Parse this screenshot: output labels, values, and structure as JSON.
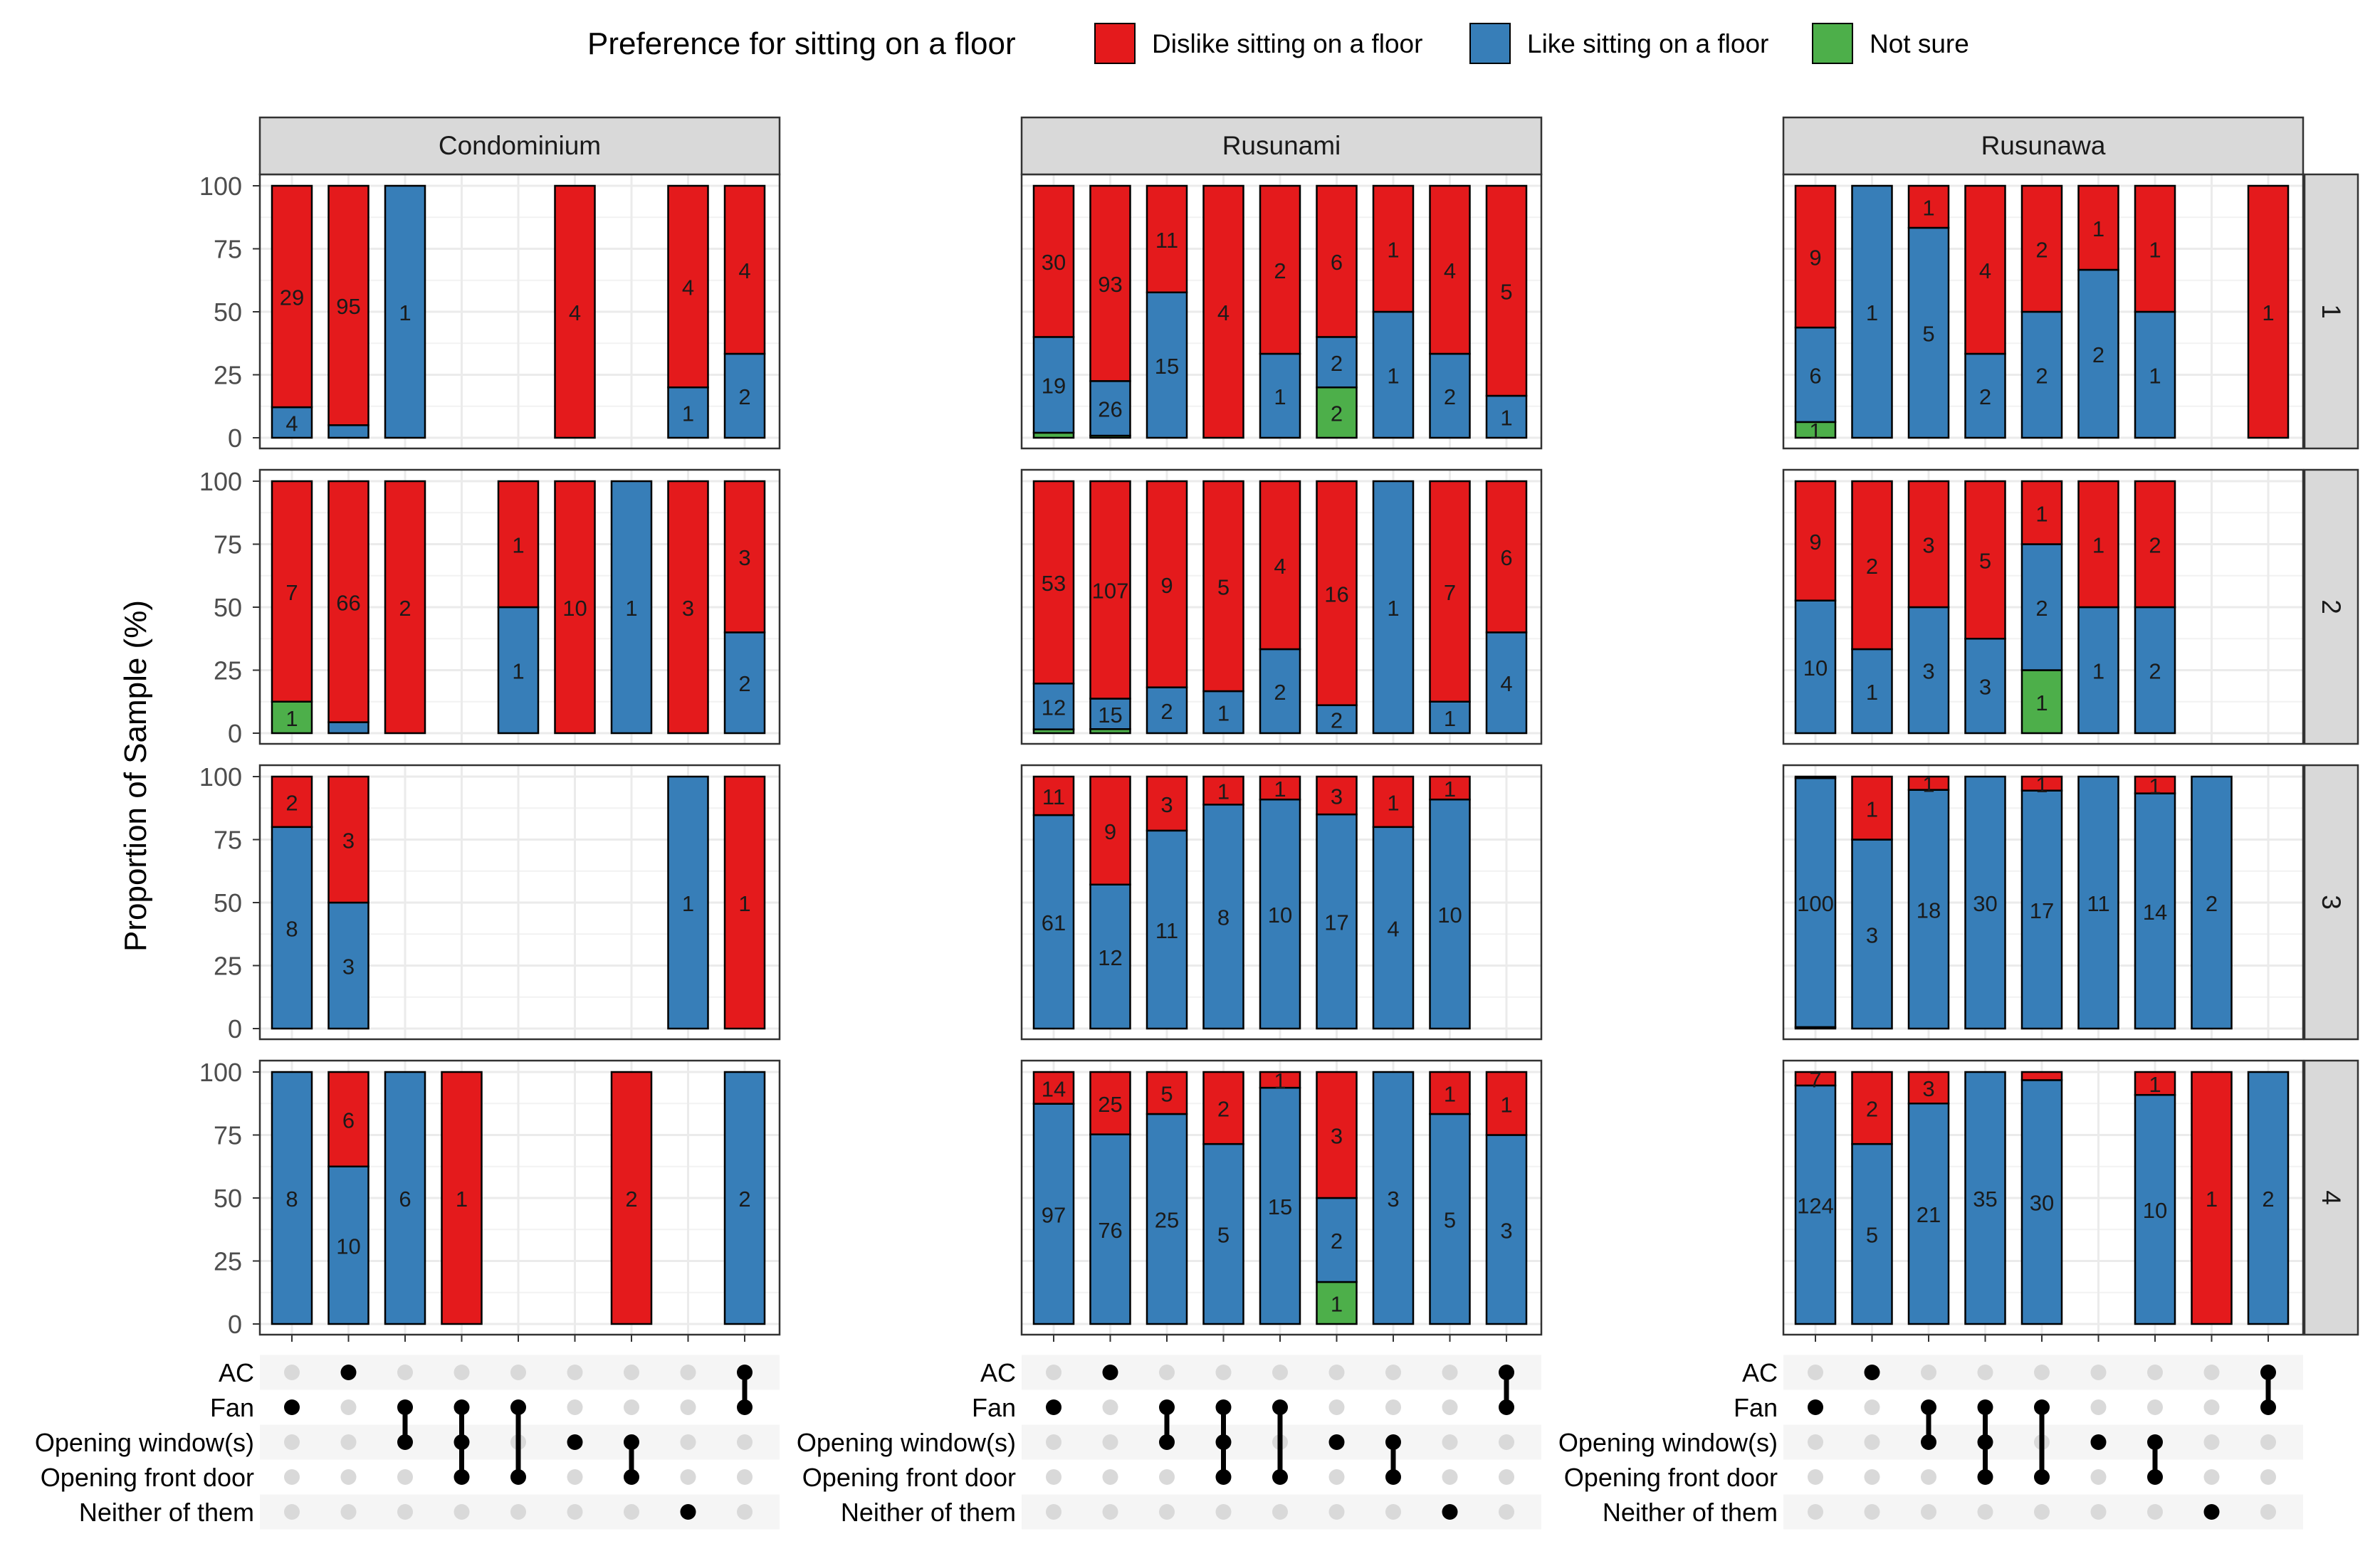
{
  "chart_data": {
    "type": "bar",
    "subtype": "stacked-percent-faceted-upset",
    "ylabel": "Proportion of Sample (%)",
    "ylim": [
      0,
      100
    ],
    "yticks": [
      0,
      25,
      50,
      75,
      100
    ],
    "legend": {
      "title": "Preference for sitting on a floor",
      "position": "top",
      "entries": [
        {
          "key": "dislike",
          "label": "Dislike sitting on a floor",
          "color": "#e41a1c"
        },
        {
          "key": "like",
          "label": "Like sitting on a floor",
          "color": "#377eb8"
        },
        {
          "key": "notsure",
          "label": "Not sure",
          "color": "#4daf4a"
        }
      ]
    },
    "columns": [
      "Condominium",
      "Rusunami",
      "Rusunawa"
    ],
    "rows": [
      "1",
      "2",
      "3",
      "4"
    ],
    "set_labels": [
      "AC",
      "Fan",
      "Opening window(s)",
      "Opening front door",
      "Neither of them"
    ],
    "combinations": [
      [
        1
      ],
      [
        0
      ],
      [
        1,
        2
      ],
      [
        1,
        2,
        3
      ],
      [
        1,
        3
      ],
      [
        2
      ],
      [
        2,
        3
      ],
      [
        4
      ],
      [
        0,
        1
      ]
    ],
    "panels": [
      [
        [
          {
            "slot": 0,
            "notsure": 0,
            "like": 4,
            "dislike": 29
          },
          {
            "slot": 1,
            "notsure": 0,
            "like": 5,
            "dislike": 95,
            "labels": {
              "like": "",
              "dislike": "95"
            }
          },
          {
            "slot": 2,
            "notsure": 0,
            "like": 1,
            "dislike": 0
          },
          {
            "slot": 5,
            "notsure": 0,
            "like": 0,
            "dislike": 4
          },
          {
            "slot": 7,
            "notsure": 0,
            "like": 1,
            "dislike": 4
          },
          {
            "slot": 8,
            "notsure": 0,
            "like": 2,
            "dislike": 4
          }
        ],
        [
          {
            "slot": 0,
            "notsure": 1,
            "like": 0,
            "dislike": 7
          },
          {
            "slot": 1,
            "notsure": 0,
            "like": 3,
            "dislike": 66,
            "labels": {
              "like": "",
              "dislike": "66"
            }
          },
          {
            "slot": 2,
            "notsure": 0,
            "like": 0,
            "dislike": 2
          },
          {
            "slot": 4,
            "notsure": 0,
            "like": 1,
            "dislike": 1
          },
          {
            "slot": 5,
            "notsure": 0,
            "like": 0,
            "dislike": 10
          },
          {
            "slot": 6,
            "notsure": 0,
            "like": 1,
            "dislike": 0
          },
          {
            "slot": 7,
            "notsure": 0,
            "like": 0,
            "dislike": 3
          },
          {
            "slot": 8,
            "notsure": 0,
            "like": 2,
            "dislike": 3
          }
        ],
        [
          {
            "slot": 0,
            "notsure": 0,
            "like": 8,
            "dislike": 2
          },
          {
            "slot": 1,
            "notsure": 0,
            "like": 3,
            "dislike": 3
          },
          {
            "slot": 7,
            "notsure": 0,
            "like": 1,
            "dislike": 0
          },
          {
            "slot": 8,
            "notsure": 0,
            "like": 0,
            "dislike": 1
          }
        ],
        [
          {
            "slot": 0,
            "notsure": 0,
            "like": 8,
            "dislike": 0
          },
          {
            "slot": 1,
            "notsure": 0,
            "like": 10,
            "dislike": 6
          },
          {
            "slot": 2,
            "notsure": 0,
            "like": 6,
            "dislike": 0
          },
          {
            "slot": 3,
            "notsure": 0,
            "like": 0,
            "dislike": 1
          },
          {
            "slot": 6,
            "notsure": 0,
            "like": 0,
            "dislike": 2
          },
          {
            "slot": 8,
            "notsure": 0,
            "like": 2,
            "dislike": 0
          }
        ]
      ],
      [
        [
          {
            "slot": 0,
            "notsure": 1,
            "like": 19,
            "dislike": 30,
            "labels": {
              "notsure": ""
            }
          },
          {
            "slot": 1,
            "notsure": 1,
            "like": 26,
            "dislike": 93,
            "labels": {
              "notsure": ""
            }
          },
          {
            "slot": 2,
            "notsure": 0,
            "like": 15,
            "dislike": 11
          },
          {
            "slot": 3,
            "notsure": 0,
            "like": 0,
            "dislike": 4
          },
          {
            "slot": 4,
            "notsure": 0,
            "like": 1,
            "dislike": 2
          },
          {
            "slot": 5,
            "notsure": 2,
            "like": 2,
            "dislike": 6
          },
          {
            "slot": 6,
            "notsure": 0,
            "like": 1,
            "dislike": 1
          },
          {
            "slot": 7,
            "notsure": 0,
            "like": 2,
            "dislike": 4
          },
          {
            "slot": 8,
            "notsure": 0,
            "like": 1,
            "dislike": 5
          }
        ],
        [
          {
            "slot": 0,
            "notsure": 1,
            "like": 12,
            "dislike": 53,
            "labels": {
              "notsure": ""
            }
          },
          {
            "slot": 1,
            "notsure": 2,
            "like": 15,
            "dislike": 107,
            "labels": {
              "notsure": ""
            }
          },
          {
            "slot": 2,
            "notsure": 0,
            "like": 2,
            "dislike": 9
          },
          {
            "slot": 3,
            "notsure": 0,
            "like": 1,
            "dislike": 5
          },
          {
            "slot": 4,
            "notsure": 0,
            "like": 2,
            "dislike": 4
          },
          {
            "slot": 5,
            "notsure": 0,
            "like": 2,
            "dislike": 16
          },
          {
            "slot": 6,
            "notsure": 0,
            "like": 1,
            "dislike": 0
          },
          {
            "slot": 7,
            "notsure": 0,
            "like": 1,
            "dislike": 7
          },
          {
            "slot": 8,
            "notsure": 0,
            "like": 4,
            "dislike": 6
          }
        ],
        [
          {
            "slot": 0,
            "notsure": 0,
            "like": 61,
            "dislike": 11
          },
          {
            "slot": 1,
            "notsure": 0,
            "like": 12,
            "dislike": 9
          },
          {
            "slot": 2,
            "notsure": 0,
            "like": 11,
            "dislike": 3
          },
          {
            "slot": 3,
            "notsure": 0,
            "like": 8,
            "dislike": 1
          },
          {
            "slot": 4,
            "notsure": 0,
            "like": 10,
            "dislike": 1
          },
          {
            "slot": 5,
            "notsure": 0,
            "like": 17,
            "dislike": 3
          },
          {
            "slot": 6,
            "notsure": 0,
            "like": 4,
            "dislike": 1
          },
          {
            "slot": 7,
            "notsure": 0,
            "like": 10,
            "dislike": 1
          }
        ],
        [
          {
            "slot": 0,
            "notsure": 0,
            "like": 97,
            "dislike": 14
          },
          {
            "slot": 1,
            "notsure": 0,
            "like": 76,
            "dislike": 25
          },
          {
            "slot": 2,
            "notsure": 0,
            "like": 25,
            "dislike": 5
          },
          {
            "slot": 3,
            "notsure": 0,
            "like": 5,
            "dislike": 2
          },
          {
            "slot": 4,
            "notsure": 0,
            "like": 15,
            "dislike": 1
          },
          {
            "slot": 5,
            "notsure": 1,
            "like": 2,
            "dislike": 3
          },
          {
            "slot": 6,
            "notsure": 0,
            "like": 3,
            "dislike": 0
          },
          {
            "slot": 7,
            "notsure": 0,
            "like": 5,
            "dislike": 1
          },
          {
            "slot": 8,
            "notsure": 0,
            "like": 3,
            "dislike": 1
          }
        ]
      ],
      [
        [
          {
            "slot": 0,
            "notsure": 1,
            "like": 6,
            "dislike": 9
          },
          {
            "slot": 1,
            "notsure": 0,
            "like": 1,
            "dislike": 0
          },
          {
            "slot": 2,
            "notsure": 0,
            "like": 5,
            "dislike": 1
          },
          {
            "slot": 3,
            "notsure": 0,
            "like": 2,
            "dislike": 4
          },
          {
            "slot": 4,
            "notsure": 0,
            "like": 2,
            "dislike": 2
          },
          {
            "slot": 5,
            "notsure": 0,
            "like": 2,
            "dislike": 1
          },
          {
            "slot": 6,
            "notsure": 0,
            "like": 1,
            "dislike": 1
          },
          {
            "slot": 8,
            "notsure": 0,
            "like": 0,
            "dislike": 1
          }
        ],
        [
          {
            "slot": 0,
            "notsure": 0,
            "like": 10,
            "dislike": 9
          },
          {
            "slot": 1,
            "notsure": 0,
            "like": 1,
            "dislike": 2
          },
          {
            "slot": 2,
            "notsure": 0,
            "like": 3,
            "dislike": 3
          },
          {
            "slot": 3,
            "notsure": 0,
            "like": 3,
            "dislike": 5
          },
          {
            "slot": 4,
            "notsure": 1,
            "like": 2,
            "dislike": 1
          },
          {
            "slot": 5,
            "notsure": 0,
            "like": 1,
            "dislike": 1
          },
          {
            "slot": 6,
            "notsure": 0,
            "like": 2,
            "dislike": 2
          }
        ],
        [
          {
            "slot": 0,
            "notsure": 0.6,
            "like": 100,
            "dislike": 0.6,
            "labels": {
              "notsure": "",
              "dislike": "",
              "like": "100"
            }
          },
          {
            "slot": 1,
            "notsure": 0,
            "like": 3,
            "dislike": 1
          },
          {
            "slot": 2,
            "notsure": 0,
            "like": 18,
            "dislike": 1
          },
          {
            "slot": 3,
            "notsure": 0,
            "like": 30,
            "dislike": 0
          },
          {
            "slot": 4,
            "notsure": 0,
            "like": 17,
            "dislike": 1
          },
          {
            "slot": 5,
            "notsure": 0,
            "like": 11,
            "dislike": 0
          },
          {
            "slot": 6,
            "notsure": 0,
            "like": 14,
            "dislike": 1
          },
          {
            "slot": 7,
            "notsure": 0,
            "like": 2,
            "dislike": 0
          }
        ],
        [
          {
            "slot": 0,
            "notsure": 0,
            "like": 124,
            "dislike": 7
          },
          {
            "slot": 1,
            "notsure": 0,
            "like": 5,
            "dislike": 2
          },
          {
            "slot": 2,
            "notsure": 0,
            "like": 21,
            "dislike": 3
          },
          {
            "slot": 3,
            "notsure": 0,
            "like": 35,
            "dislike": 0
          },
          {
            "slot": 4,
            "notsure": 0,
            "like": 30,
            "dislike": 1,
            "labels": {
              "dislike": ""
            }
          },
          {
            "slot": 6,
            "notsure": 0,
            "like": 10,
            "dislike": 1
          },
          {
            "slot": 7,
            "notsure": 0,
            "like": 0,
            "dislike": 1
          },
          {
            "slot": 8,
            "notsure": 0,
            "like": 2,
            "dislike": 0
          }
        ]
      ]
    ]
  }
}
